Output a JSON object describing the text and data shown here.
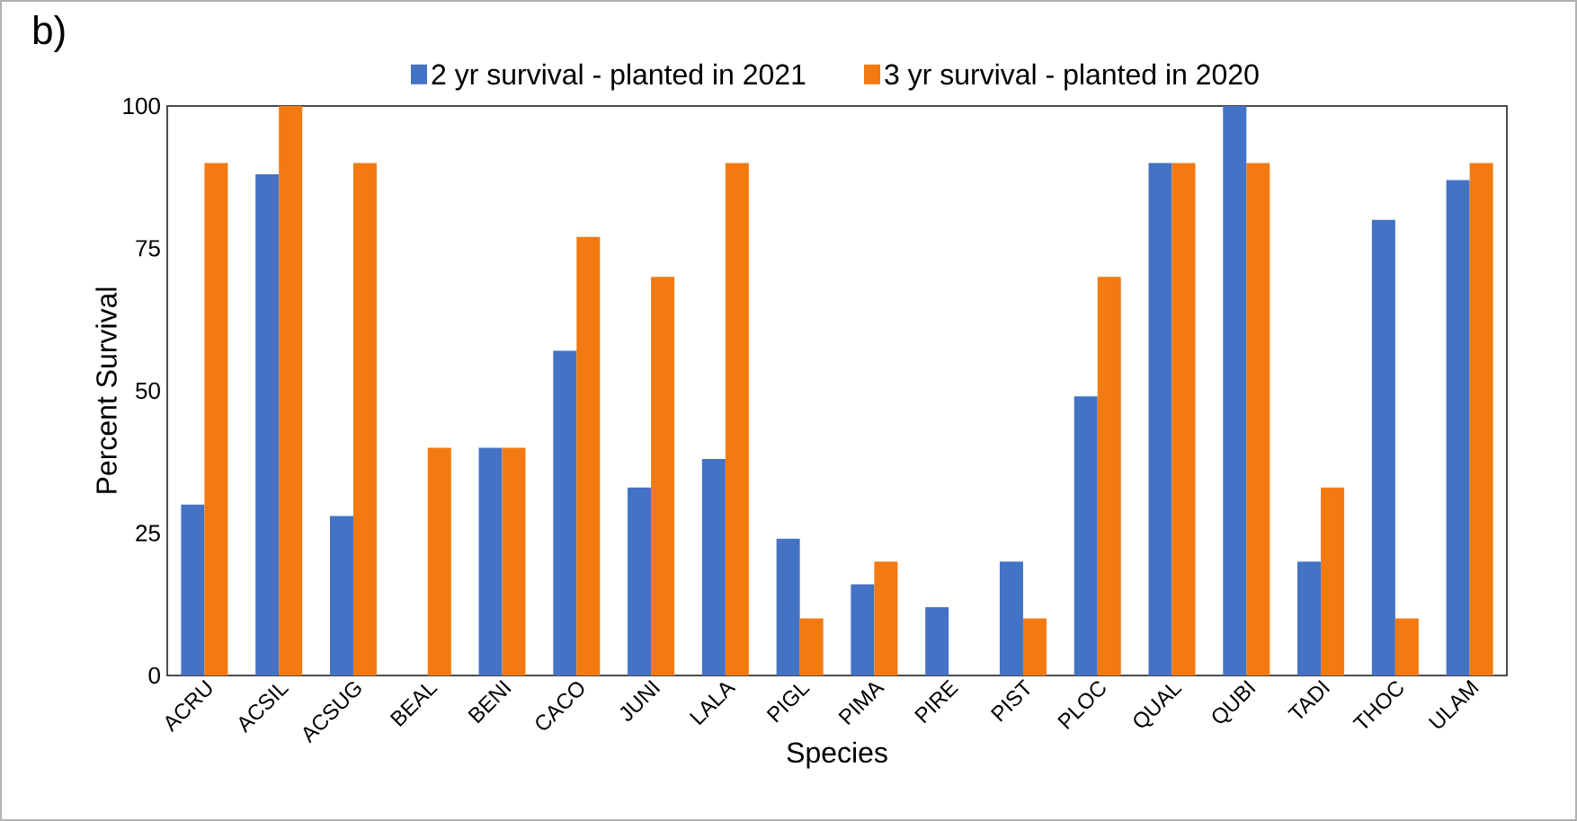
{
  "chart_data": {
    "type": "bar",
    "xlabel": "Species",
    "ylabel": "Percent Survival",
    "annotations": [
      "b)"
    ],
    "categories": [
      "ACRU",
      "ACSIL",
      "ACSUG",
      "BEAL",
      "BENI",
      "CACO",
      "JUNI",
      "LALA",
      "PIGL",
      "PIMA",
      "PIRE",
      "PIST",
      "PLOC",
      "QUAL",
      "QUBI",
      "TADI",
      "THOC",
      "ULAM"
    ],
    "series": [
      {
        "name": "2 yr survival - planted in 2021",
        "color": "#4472c4",
        "values": [
          30,
          88,
          28,
          0,
          40,
          57,
          33,
          38,
          24,
          16,
          12,
          20,
          49,
          90,
          100,
          20,
          80,
          87
        ]
      },
      {
        "name": "3 yr survival - planted in 2020",
        "color": "#f27a10",
        "values": [
          90,
          100,
          90,
          40,
          40,
          77,
          70,
          90,
          10,
          20,
          0,
          10,
          70,
          90,
          90,
          33,
          10,
          90
        ]
      }
    ],
    "ylim": [
      0,
      100
    ],
    "yticks": [
      0,
      25,
      50,
      75,
      100
    ],
    "grid": false,
    "legend": "top"
  }
}
